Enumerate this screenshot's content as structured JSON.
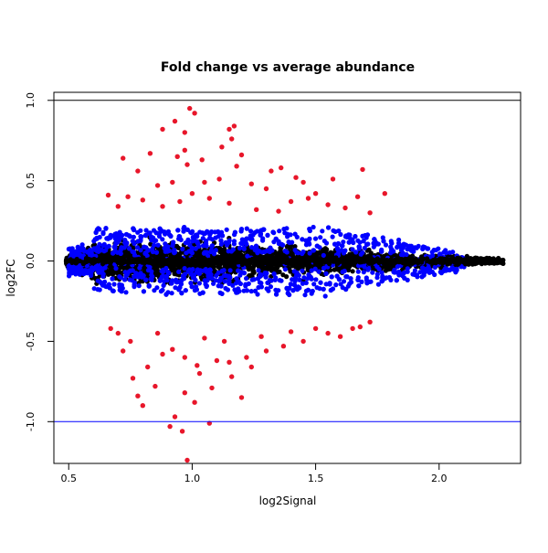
{
  "chart_data": {
    "type": "scatter",
    "title": "Fold change vs average abundance",
    "xlabel": "log2Signal",
    "ylabel": "log2FC",
    "xlim": [
      0.44,
      2.33
    ],
    "ylim": [
      -1.26,
      1.05
    ],
    "x_ticks": [
      "0.5",
      "1.0",
      "1.5",
      "2.0"
    ],
    "y_ticks": [
      "-1.0",
      "-0.5",
      "0.0",
      "0.5",
      "1.0"
    ],
    "reference_lines": [
      {
        "y": 1.0,
        "color": "#000000"
      },
      {
        "y": -1.0,
        "color": "#0000ff"
      }
    ],
    "grid": false,
    "legend": "none",
    "colors": {
      "all_points": "#000000",
      "blue_points": "#0000ff",
      "red_points": "#e8162a"
    },
    "red_points": [
      [
        0.93,
        0.87
      ],
      [
        0.99,
        0.95
      ],
      [
        1.01,
        0.92
      ],
      [
        1.17,
        0.84
      ],
      [
        1.15,
        0.82
      ],
      [
        0.88,
        0.82
      ],
      [
        0.97,
        0.8
      ],
      [
        1.16,
        0.76
      ],
      [
        1.12,
        0.71
      ],
      [
        0.97,
        0.69
      ],
      [
        1.2,
        0.66
      ],
      [
        0.94,
        0.65
      ],
      [
        0.83,
        0.67
      ],
      [
        0.72,
        0.64
      ],
      [
        1.04,
        0.63
      ],
      [
        0.98,
        0.6
      ],
      [
        1.18,
        0.59
      ],
      [
        0.78,
        0.56
      ],
      [
        1.69,
        0.57
      ],
      [
        1.57,
        0.51
      ],
      [
        1.36,
        0.58
      ],
      [
        1.32,
        0.56
      ],
      [
        1.42,
        0.52
      ],
      [
        1.45,
        0.49
      ],
      [
        1.11,
        0.51
      ],
      [
        1.05,
        0.49
      ],
      [
        0.92,
        0.49
      ],
      [
        0.86,
        0.47
      ],
      [
        1.24,
        0.48
      ],
      [
        1.3,
        0.45
      ],
      [
        1.5,
        0.42
      ],
      [
        1.78,
        0.42
      ],
      [
        1.67,
        0.4
      ],
      [
        1.47,
        0.39
      ],
      [
        1.4,
        0.37
      ],
      [
        1.55,
        0.35
      ],
      [
        0.74,
        0.4
      ],
      [
        0.66,
        0.41
      ],
      [
        0.8,
        0.38
      ],
      [
        0.7,
        0.34
      ],
      [
        1.0,
        0.42
      ],
      [
        1.07,
        0.39
      ],
      [
        0.95,
        0.37
      ],
      [
        1.15,
        0.36
      ],
      [
        0.88,
        0.34
      ],
      [
        1.26,
        0.32
      ],
      [
        1.35,
        0.31
      ],
      [
        1.62,
        0.33
      ],
      [
        1.72,
        0.3
      ],
      [
        0.92,
        -0.55
      ],
      [
        0.97,
        -0.6
      ],
      [
        1.02,
        -0.65
      ],
      [
        1.1,
        -0.62
      ],
      [
        0.82,
        -0.66
      ],
      [
        0.76,
        -0.73
      ],
      [
        0.85,
        -0.78
      ],
      [
        0.78,
        -0.84
      ],
      [
        0.8,
        -0.9
      ],
      [
        0.97,
        -0.82
      ],
      [
        1.01,
        -0.88
      ],
      [
        1.08,
        -0.79
      ],
      [
        1.16,
        -0.72
      ],
      [
        1.24,
        -0.66
      ],
      [
        0.93,
        -0.97
      ],
      [
        0.91,
        -1.03
      ],
      [
        0.96,
        -1.06
      ],
      [
        1.07,
        -1.01
      ],
      [
        0.98,
        -1.24
      ],
      [
        1.2,
        -0.85
      ],
      [
        1.22,
        -0.6
      ],
      [
        1.3,
        -0.56
      ],
      [
        1.37,
        -0.53
      ],
      [
        1.45,
        -0.5
      ],
      [
        1.55,
        -0.45
      ],
      [
        1.65,
        -0.42
      ],
      [
        1.68,
        -0.41
      ],
      [
        1.72,
        -0.38
      ],
      [
        1.5,
        -0.42
      ],
      [
        1.6,
        -0.47
      ],
      [
        0.7,
        -0.45
      ],
      [
        0.75,
        -0.5
      ],
      [
        0.86,
        -0.45
      ],
      [
        1.05,
        -0.48
      ],
      [
        1.13,
        -0.5
      ],
      [
        1.28,
        -0.47
      ],
      [
        1.4,
        -0.44
      ],
      [
        0.88,
        -0.58
      ],
      [
        1.03,
        -0.7
      ],
      [
        1.15,
        -0.63
      ],
      [
        0.72,
        -0.56
      ],
      [
        0.67,
        -0.42
      ]
    ]
  }
}
